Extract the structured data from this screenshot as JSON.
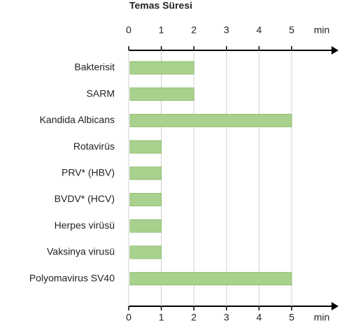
{
  "chart_data": {
    "type": "bar",
    "orientation": "horizontal",
    "title": "Temas Süresi",
    "x_label": "min",
    "categories": [
      "Bakterisit",
      "SARM",
      "Kandida Albicans",
      "Rotavirüs",
      "PRV* (HBV)",
      "BVDV* (HCV)",
      "Herpes virüsü",
      "Vaksinya virusü",
      "Polyomavirus SV40"
    ],
    "values": [
      2,
      2,
      5,
      1,
      1,
      1,
      1,
      1,
      5
    ],
    "color": "#a9d18e",
    "edge_color": "#8fbf70",
    "xlim": [
      0,
      5
    ],
    "xticks": [
      0,
      1,
      2,
      3,
      4,
      5
    ],
    "grid": true
  }
}
